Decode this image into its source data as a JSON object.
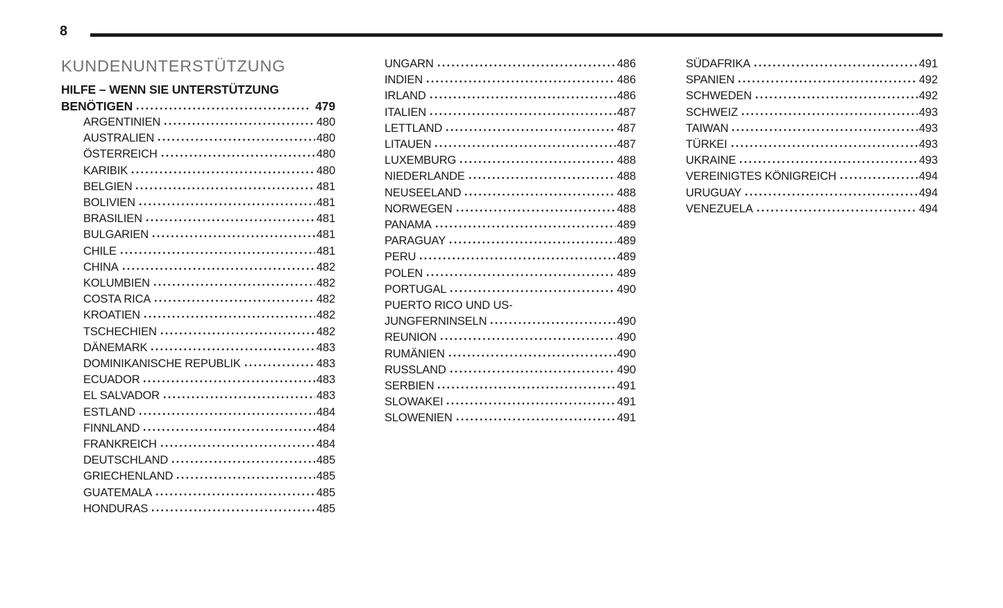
{
  "page_number": "8",
  "section_title": "KUNDENUNTERSTÜTZUNG",
  "colors": {
    "text": "#1a1a1a",
    "section_title_gray": "#6e7176",
    "rule": "#1a1a1a",
    "background": "#ffffff"
  },
  "toc": {
    "heading": {
      "line1": "HILFE – WENN SIE UNTERSTÜTZUNG",
      "line2": "BENÖTIGEN",
      "page": "479"
    },
    "columns": [
      {
        "entries": [
          {
            "label": "ARGENTINIEN",
            "page": "480"
          },
          {
            "label": "AUSTRALIEN",
            "page": "480"
          },
          {
            "label": "ÖSTERREICH",
            "page": "480"
          },
          {
            "label": "KARIBIK",
            "page": "480"
          },
          {
            "label": "BELGIEN",
            "page": "481"
          },
          {
            "label": "BOLIVIEN",
            "page": "481"
          },
          {
            "label": "BRASILIEN",
            "page": "481"
          },
          {
            "label": "BULGARIEN",
            "page": "481"
          },
          {
            "label": "CHILE",
            "page": "481"
          },
          {
            "label": "CHINA",
            "page": "482"
          },
          {
            "label": "KOLUMBIEN",
            "page": "482"
          },
          {
            "label": "COSTA RICA",
            "page": "482"
          },
          {
            "label": "KROATIEN",
            "page": "482"
          },
          {
            "label": "TSCHECHIEN",
            "page": "482"
          },
          {
            "label": "DÄNEMARK",
            "page": "483"
          },
          {
            "label": "DOMINIKANISCHE REPUBLIK",
            "page": "483"
          },
          {
            "label": "ECUADOR",
            "page": "483"
          },
          {
            "label": "EL SALVADOR",
            "page": "483"
          },
          {
            "label": "ESTLAND",
            "page": "484"
          },
          {
            "label": "FINNLAND",
            "page": "484"
          },
          {
            "label": "FRANKREICH",
            "page": "484"
          },
          {
            "label": "DEUTSCHLAND",
            "page": "485"
          },
          {
            "label": "GRIECHENLAND",
            "page": "485"
          },
          {
            "label": "GUATEMALA",
            "page": "485"
          },
          {
            "label": "HONDURAS",
            "page": "485"
          }
        ]
      },
      {
        "entries": [
          {
            "label": "UNGARN",
            "page": "486"
          },
          {
            "label": "INDIEN",
            "page": "486"
          },
          {
            "label": "IRLAND",
            "page": "486"
          },
          {
            "label": "ITALIEN",
            "page": "487"
          },
          {
            "label": "LETTLAND",
            "page": "487"
          },
          {
            "label": "LITAUEN",
            "page": "487"
          },
          {
            "label": "LUXEMBURG",
            "page": "488"
          },
          {
            "label": "NIEDERLANDE",
            "page": "488"
          },
          {
            "label": "NEUSEELAND",
            "page": "488"
          },
          {
            "label": "NORWEGEN",
            "page": "488"
          },
          {
            "label": "PANAMA",
            "page": "489"
          },
          {
            "label": "PARAGUAY",
            "page": "489"
          },
          {
            "label": "PERU",
            "page": "489"
          },
          {
            "label": "POLEN",
            "page": "489"
          },
          {
            "label": "PORTUGAL",
            "page": "490"
          },
          {
            "pre": "PUERTO RICO UND US-",
            "label": "JUNGFERNINSELN",
            "page": "490"
          },
          {
            "label": "REUNION",
            "page": "490"
          },
          {
            "label": "RUMÄNIEN",
            "page": "490"
          },
          {
            "label": "RUSSLAND",
            "page": "490"
          },
          {
            "label": "SERBIEN",
            "page": "491"
          },
          {
            "label": "SLOWAKEI",
            "page": "491"
          },
          {
            "label": "SLOWENIEN",
            "page": "491"
          }
        ]
      },
      {
        "entries": [
          {
            "label": "SÜDAFRIKA",
            "page": "491"
          },
          {
            "label": "SPANIEN",
            "page": "492"
          },
          {
            "label": "SCHWEDEN",
            "page": "492"
          },
          {
            "label": "SCHWEIZ",
            "page": "493"
          },
          {
            "label": "TAIWAN",
            "page": "493"
          },
          {
            "label": "TÜRKEI",
            "page": "493"
          },
          {
            "label": "UKRAINE",
            "page": "493"
          },
          {
            "label": "VEREINIGTES KÖNIGREICH",
            "page": "494"
          },
          {
            "label": "URUGUAY",
            "page": "494"
          },
          {
            "label": "VENEZUELA",
            "page": "494"
          }
        ]
      }
    ]
  }
}
